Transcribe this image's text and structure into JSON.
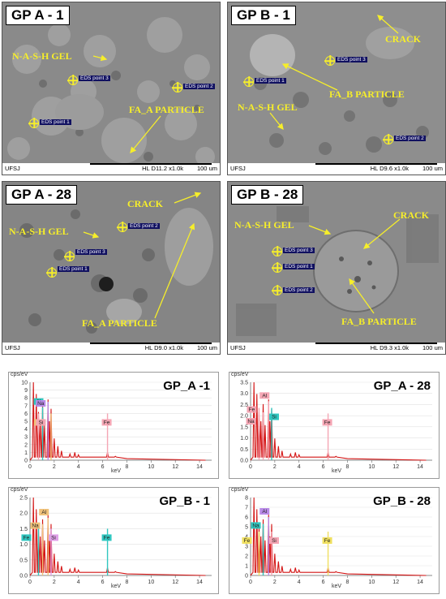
{
  "sem_panels": [
    {
      "title": "GP A - 1",
      "labels": [
        "N-A-S-H GEL",
        "FA_A PARTICLE"
      ],
      "eds_points": [
        "EDS point 3",
        "EDS point 2",
        "EDS point 1"
      ],
      "footer": {
        "left": "UFSJ",
        "info": "HL  D11.2 x1.0k",
        "scale": "100 um"
      }
    },
    {
      "title": "GP B - 1",
      "labels": [
        "CRACK",
        "FA_B PARTICLE",
        "N-A-S-H GEL"
      ],
      "eds_points": [
        "EDS point 3",
        "EDS point 1",
        "EDS point 2"
      ],
      "footer": {
        "left": "UFSJ",
        "info": "HL  D9.6 x1.0k",
        "scale": "100 um"
      }
    },
    {
      "title": "GP A - 28",
      "labels": [
        "CRACK",
        "N-A-S-H GEL",
        "FA_A PARTICLE"
      ],
      "eds_points": [
        "EDS point 2",
        "EDS point 3",
        "EDS point 1"
      ],
      "footer": {
        "left": "UFSJ",
        "info": "HL  D9.0 x1.0k",
        "scale": "100 um"
      }
    },
    {
      "title": "GP B - 28",
      "labels": [
        "N-A-S-H GEL",
        "CRACK",
        "FA_B PARTICLE"
      ],
      "eds_points": [
        "EDS point 3",
        "EDS point 1",
        "EDS point 2"
      ],
      "footer": {
        "left": "UFSJ",
        "info": "HL  D9.3 x1.0k",
        "scale": "100 um"
      }
    }
  ],
  "eds_axes": {
    "y_unit": "cps/eV",
    "x_unit": "keV",
    "x_ticks": [
      "0",
      "2",
      "4",
      "6",
      "8",
      "10",
      "12",
      "14"
    ]
  },
  "chart_data": [
    {
      "type": "line",
      "title": "GP_A -1",
      "xlabel": "keV",
      "ylabel": "cps/eV",
      "xlim": [
        0,
        15
      ],
      "ylim": [
        0,
        10
      ],
      "yticks": [
        "0",
        "1",
        "2",
        "3",
        "4",
        "5",
        "6",
        "7",
        "8",
        "9",
        "10"
      ],
      "peaks": [
        {
          "element": "Na",
          "x": 1.04,
          "y": 6.8,
          "color": "#30c7c0"
        },
        {
          "element": "Al",
          "x": 1.49,
          "y": 7.5,
          "color": "#b98ae8"
        },
        {
          "element": "Si",
          "x": 1.74,
          "y": 6.0,
          "color": "#f0c27a"
        },
        {
          "element": "Fe",
          "x": 0.7,
          "y": 6.0,
          "color": "#f5a6b4"
        },
        {
          "element": "Fe",
          "x": 6.4,
          "y": 6.0,
          "color": "#f5a6b4"
        }
      ],
      "peak_labels": [
        "Al",
        "Na",
        "Fe",
        "Si",
        "Fe"
      ]
    },
    {
      "type": "line",
      "title": "GP_A - 28",
      "xlabel": "keV",
      "ylabel": "cps/eV",
      "xlim": [
        0,
        15
      ],
      "ylim": [
        0,
        3.5
      ],
      "yticks": [
        "0.0",
        "0.5",
        "1.0",
        "1.5",
        "2.0",
        "2.5",
        "3.0",
        "3.5"
      ],
      "peaks": [
        {
          "element": "Al",
          "x": 1.49,
          "y": 2.65,
          "color": "#f5a6b4"
        },
        {
          "element": "Fe",
          "x": 0.7,
          "y": 2.35,
          "color": "#f5a6b4"
        },
        {
          "element": "Na",
          "x": 1.04,
          "y": 2.15,
          "color": "#f5a6b4"
        },
        {
          "element": "Si",
          "x": 1.74,
          "y": 2.35,
          "color": "#30c7c0"
        },
        {
          "element": "Fe",
          "x": 6.4,
          "y": 2.1,
          "color": "#f5a6b4"
        }
      ],
      "peak_labels": [
        "Al",
        "Fe",
        "Na",
        "Si",
        "Fe"
      ]
    },
    {
      "type": "line",
      "title": "GP_B - 1",
      "xlabel": "keV",
      "ylabel": "cps/eV",
      "xlim": [
        0,
        15
      ],
      "ylim": [
        0,
        2.5
      ],
      "yticks": [
        "0.0",
        "0.5",
        "1.0",
        "1.5",
        "2.0",
        "2.5"
      ],
      "peaks": [
        {
          "element": "Al",
          "x": 1.49,
          "y": 1.85,
          "color": "#f0c27a"
        },
        {
          "element": "Na",
          "x": 1.04,
          "y": 1.65,
          "color": "#f0c27a"
        },
        {
          "element": "Fe",
          "x": 0.7,
          "y": 1.5,
          "color": "#30c7c0"
        },
        {
          "element": "Si",
          "x": 1.74,
          "y": 1.5,
          "color": "#e0a0e8"
        },
        {
          "element": "Fe",
          "x": 6.4,
          "y": 1.5,
          "color": "#30c7c0"
        }
      ],
      "peak_labels": [
        "Al",
        "Na",
        "Fe",
        "Si",
        "Fe"
      ]
    },
    {
      "type": "line",
      "title": "GP_B - 28",
      "xlabel": "keV",
      "ylabel": "cps/eV",
      "xlim": [
        0,
        15
      ],
      "ylim": [
        0,
        8
      ],
      "yticks": [
        "0",
        "1",
        "2",
        "3",
        "4",
        "5",
        "6",
        "7",
        "8"
      ],
      "peaks": [
        {
          "element": "Al",
          "x": 1.49,
          "y": 6.0,
          "color": "#b98ae8"
        },
        {
          "element": "Na",
          "x": 1.04,
          "y": 5.3,
          "color": "#30c7c0"
        },
        {
          "element": "Fe",
          "x": 0.7,
          "y": 4.5,
          "color": "#f0e060"
        },
        {
          "element": "Si",
          "x": 1.74,
          "y": 4.5,
          "color": "#f5a6b4"
        },
        {
          "element": "Fe",
          "x": 6.4,
          "y": 4.5,
          "color": "#f0e060"
        }
      ],
      "peak_labels": [
        "Al",
        "Na",
        "Fe",
        "Si",
        "Fe"
      ]
    }
  ]
}
